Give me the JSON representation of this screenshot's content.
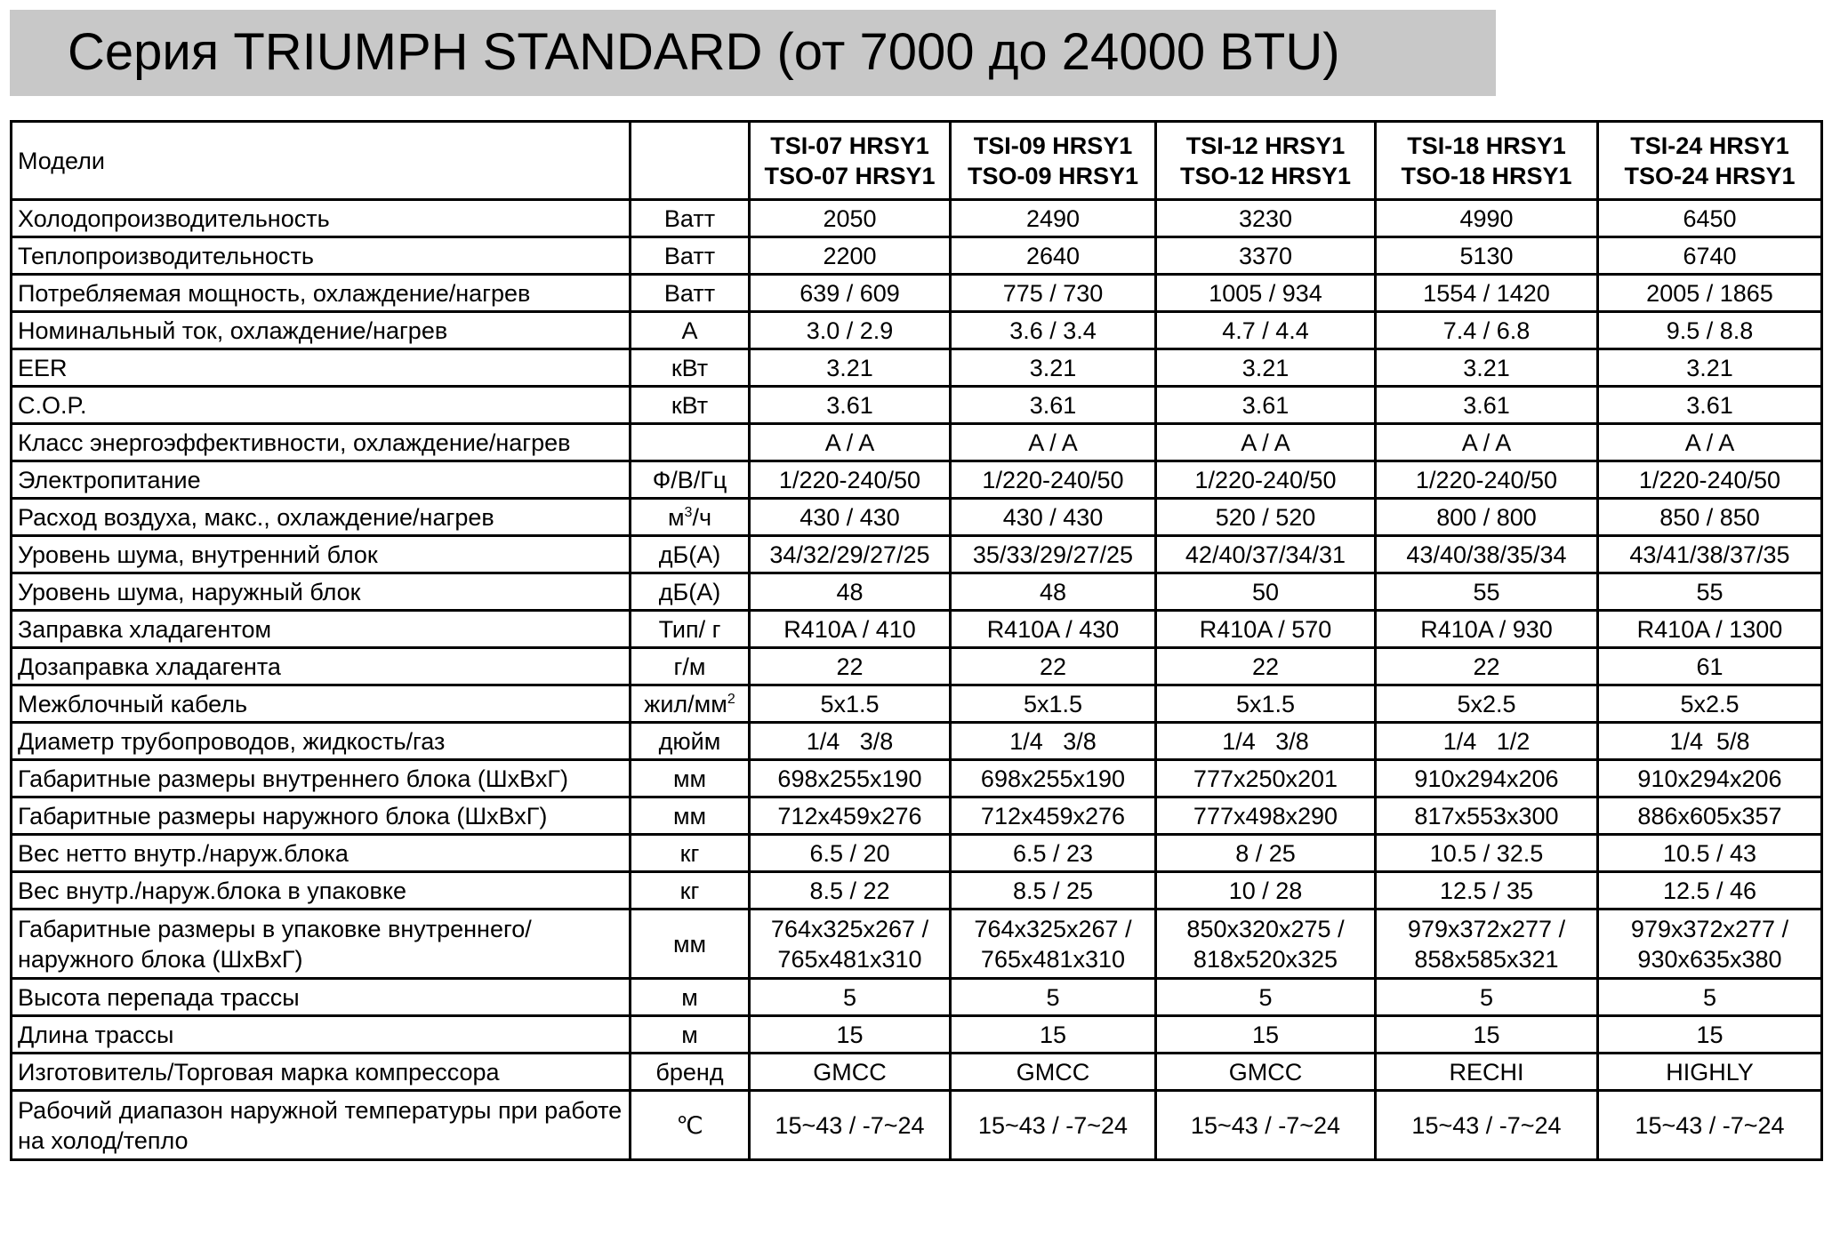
{
  "title": "Серия TRIUMPH STANDARD (от 7000 до 24000 BTU)",
  "header": {
    "label": "Модели",
    "models": [
      [
        "TSI-07 HRSY1",
        "TSO-07 HRSY1"
      ],
      [
        "TSI-09 HRSY1",
        "TSO-09 HRSY1"
      ],
      [
        "TSI-12 HRSY1",
        "TSO-12 HRSY1"
      ],
      [
        "TSI-18 HRSY1",
        "TSO-18 HRSY1"
      ],
      [
        "TSI-24 HRSY1",
        "TSO-24 HRSY1"
      ]
    ]
  },
  "rows": [
    {
      "label": "Холодопроизводительность",
      "unit": "Ватт",
      "values": [
        "2050",
        "2490",
        "3230",
        "4990",
        "6450"
      ]
    },
    {
      "label": "Теплопроизводительность",
      "unit": "Ватт",
      "values": [
        "2200",
        "2640",
        "3370",
        "5130",
        "6740"
      ]
    },
    {
      "label": "Потребляемая мощность, охлаждение/нагрев",
      "unit": "Ватт",
      "values": [
        "639 / 609",
        "775 / 730",
        "1005 / 934",
        "1554 / 1420",
        "2005 / 1865"
      ]
    },
    {
      "label": "Номинальный ток, охлаждение/нагрев",
      "unit": "А",
      "values": [
        "3.0 / 2.9",
        "3.6 / 3.4",
        "4.7 / 4.4",
        "7.4 / 6.8",
        "9.5 / 8.8"
      ]
    },
    {
      "label": "EER",
      "unit": "кВт",
      "values": [
        "3.21",
        "3.21",
        "3.21",
        "3.21",
        "3.21"
      ]
    },
    {
      "label": "C.O.P.",
      "unit": "кВт",
      "values": [
        "3.61",
        "3.61",
        "3.61",
        "3.61",
        "3.61"
      ]
    },
    {
      "label": "Класс энергоэффективности, охлаждение/нагрев",
      "unit": "",
      "values": [
        "A / A",
        "A / A",
        "A / A",
        "A / A",
        "A / A"
      ]
    },
    {
      "label": "Электропитание",
      "unit": "Ф/В/Гц",
      "values": [
        "1/220-240/50",
        "1/220-240/50",
        "1/220-240/50",
        "1/220-240/50",
        "1/220-240/50"
      ]
    },
    {
      "label": "Расход воздуха, макс., охлаждение/нагрев",
      "unit": "м",
      "unit_sup": "3",
      "unit_tail": "/ч",
      "values": [
        "430 / 430",
        "430 / 430",
        "520 / 520",
        "800 / 800",
        "850 / 850"
      ]
    },
    {
      "label": "Уровень шума, внутренний блок",
      "unit": "дБ(А)",
      "values": [
        "34/32/29/27/25",
        "35/33/29/27/25",
        "42/40/37/34/31",
        "43/40/38/35/34",
        "43/41/38/37/35"
      ]
    },
    {
      "label": "Уровень шума, наружный блок",
      "unit": "дБ(А)",
      "values": [
        "48",
        "48",
        "50",
        "55",
        "55"
      ]
    },
    {
      "label": "Заправка хладагентом",
      "unit": "Тип/ г",
      "values": [
        "R410A / 410",
        "R410A / 430",
        "R410A / 570",
        "R410A / 930",
        "R410A / 1300"
      ]
    },
    {
      "label": "Дозаправка хладагента",
      "unit": "г/м",
      "values": [
        "22",
        "22",
        "22",
        "22",
        "61"
      ]
    },
    {
      "label": "Межблочный кабель",
      "unit": "жил/мм",
      "unit_sup": "2",
      "values": [
        "5x1.5",
        "5x1.5",
        "5x1.5",
        "5x2.5",
        "5x2.5"
      ]
    },
    {
      "label": "Диаметр трубопроводов, жидкость/газ",
      "unit": "дюйм",
      "values": [
        "1/4   3/8",
        "1/4   3/8",
        "1/4   3/8",
        "1/4   1/2",
        "1/4  5/8"
      ]
    },
    {
      "label": "Габаритные размеры внутреннего блока (ШхВхГ)",
      "unit": "мм",
      "values": [
        "698x255x190",
        "698x255x190",
        "777x250x201",
        "910x294x206",
        "910x294x206"
      ]
    },
    {
      "label": "Габаритные размеры наружного блока (ШхВхГ)",
      "unit": "мм",
      "values": [
        "712x459x276",
        "712x459x276",
        "777x498x290",
        "817x553x300",
        "886x605x357"
      ]
    },
    {
      "label": "Вес нетто внутр./наруж.блока",
      "unit": "кг",
      "values": [
        "6.5 / 20",
        "6.5 / 23",
        "8 / 25",
        "10.5 / 32.5",
        "10.5 / 43"
      ]
    },
    {
      "label": "Вес внутр./наруж.блока в упаковке",
      "unit": "кг",
      "values": [
        "8.5 / 22",
        "8.5 / 25",
        "10 / 28",
        "12.5 / 35",
        "12.5 / 46"
      ]
    },
    {
      "label": "Габаритные размеры в упаковке внутреннего/наружного блока (ШхВхГ)",
      "unit": "мм",
      "double": true,
      "values": [
        "764x325x267 / 765x481x310",
        "764x325x267 / 765x481x310",
        "850x320x275 / 818x520x325",
        "979x372x277 / 858x585x321",
        "979x372x277 / 930x635x380"
      ]
    },
    {
      "label": "Высота перепада трассы",
      "unit": "м",
      "values": [
        "5",
        "5",
        "5",
        "5",
        "5"
      ]
    },
    {
      "label": "Длина трассы",
      "unit": "м",
      "values": [
        "15",
        "15",
        "15",
        "15",
        "15"
      ]
    },
    {
      "label": "Изготовитель/Торговая марка компрессора",
      "unit": "бренд",
      "values": [
        "GMCC",
        "GMCC",
        "GMCC",
        "RECHI",
        "HIGHLY"
      ]
    },
    {
      "label": "Рабочий диапазон наружной температуры при работе на холод/тепло",
      "unit": "℃",
      "double": true,
      "values": [
        "15~43 / -7~24",
        "15~43 / -7~24",
        "15~43 / -7~24",
        "15~43 / -7~24",
        "15~43 / -7~24"
      ]
    }
  ]
}
